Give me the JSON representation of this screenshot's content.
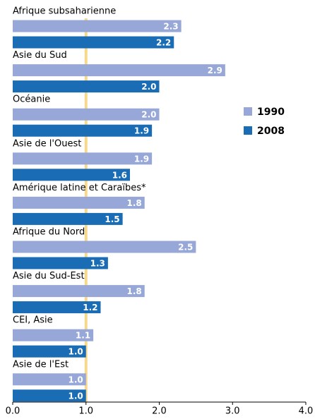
{
  "chart_data": {
    "type": "hbar",
    "categories": [
      "Afrique subsaharienne",
      "Asie du Sud",
      "Océanie",
      "Asie de l'Ouest",
      "Amérique latine et Caraïbes*",
      "Afrique du Nord",
      "Asie du Sud-Est",
      "CEI, Asie",
      "Asie de l'Est"
    ],
    "series": [
      {
        "name": "1990",
        "color": "#97a8d8",
        "values": [
          2.3,
          2.9,
          2.0,
          1.9,
          1.8,
          2.5,
          1.8,
          1.1,
          1.0
        ],
        "value_labels": [
          "2.3",
          "2.9",
          "2.0",
          "1.9",
          "1.8",
          "2.5",
          "1.8",
          "1.1",
          "1.0"
        ]
      },
      {
        "name": "2008",
        "color": "#1a6db5",
        "values": [
          2.2,
          2.0,
          1.9,
          1.6,
          1.5,
          1.3,
          1.2,
          1.0,
          1.0
        ],
        "value_labels": [
          "2.2",
          "2.0",
          "1.9",
          "1.6",
          "1.5",
          "1.3",
          "1.2",
          "1.0",
          "1.0"
        ]
      }
    ],
    "xlim": [
      0,
      4
    ],
    "xticks": [
      {
        "value": 0,
        "label": "0.0"
      },
      {
        "value": 1,
        "label": "1.0"
      },
      {
        "value": 2,
        "label": "2.0"
      },
      {
        "value": 3,
        "label": "3.0"
      },
      {
        "value": 4,
        "label": "4.0"
      }
    ],
    "reference_line": {
      "value": 1,
      "color": "#f7d98c"
    },
    "legend": "right"
  }
}
